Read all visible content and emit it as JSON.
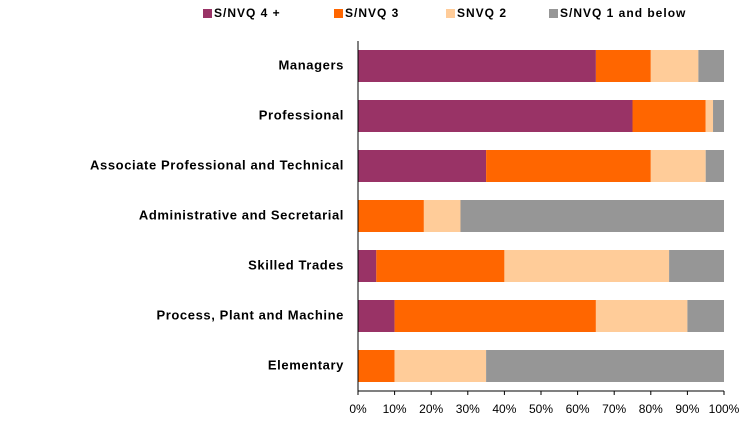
{
  "chart_data": {
    "type": "bar",
    "orientation": "horizontal",
    "stacked": true,
    "categories": [
      "Managers",
      "Professional",
      "Associate Professional and Technical",
      "Administrative and Secretarial",
      "Skilled Trades",
      "Process, Plant and Machine",
      "Elementary"
    ],
    "series": [
      {
        "name": "S/NVQ 4 +",
        "color": "#993366",
        "values": [
          65,
          75,
          35,
          0,
          5,
          10,
          0
        ]
      },
      {
        "name": "S/NVQ 3",
        "color": "#ff6600",
        "values": [
          15,
          20,
          45,
          18,
          35,
          55,
          10
        ]
      },
      {
        "name": "SNVQ 2",
        "color": "#ffcc99",
        "values": [
          13,
          2,
          15,
          10,
          45,
          25,
          25
        ]
      },
      {
        "name": "S/NVQ 1 and below",
        "color": "#969696",
        "values": [
          7,
          3,
          5,
          72,
          15,
          10,
          65
        ]
      }
    ],
    "xlim": [
      0,
      100
    ],
    "xticks": [
      {
        "value": 0,
        "label": "0%"
      },
      {
        "value": 10,
        "label": "10%"
      },
      {
        "value": 20,
        "label": "20%"
      },
      {
        "value": 30,
        "label": "30%"
      },
      {
        "value": 40,
        "label": "40%"
      },
      {
        "value": 50,
        "label": "50%"
      },
      {
        "value": 60,
        "label": "60%"
      },
      {
        "value": 70,
        "label": "70%"
      },
      {
        "value": 80,
        "label": "80%"
      },
      {
        "value": 90,
        "label": "90%"
      },
      {
        "value": 100,
        "label": "100%"
      }
    ],
    "legend": "top"
  }
}
